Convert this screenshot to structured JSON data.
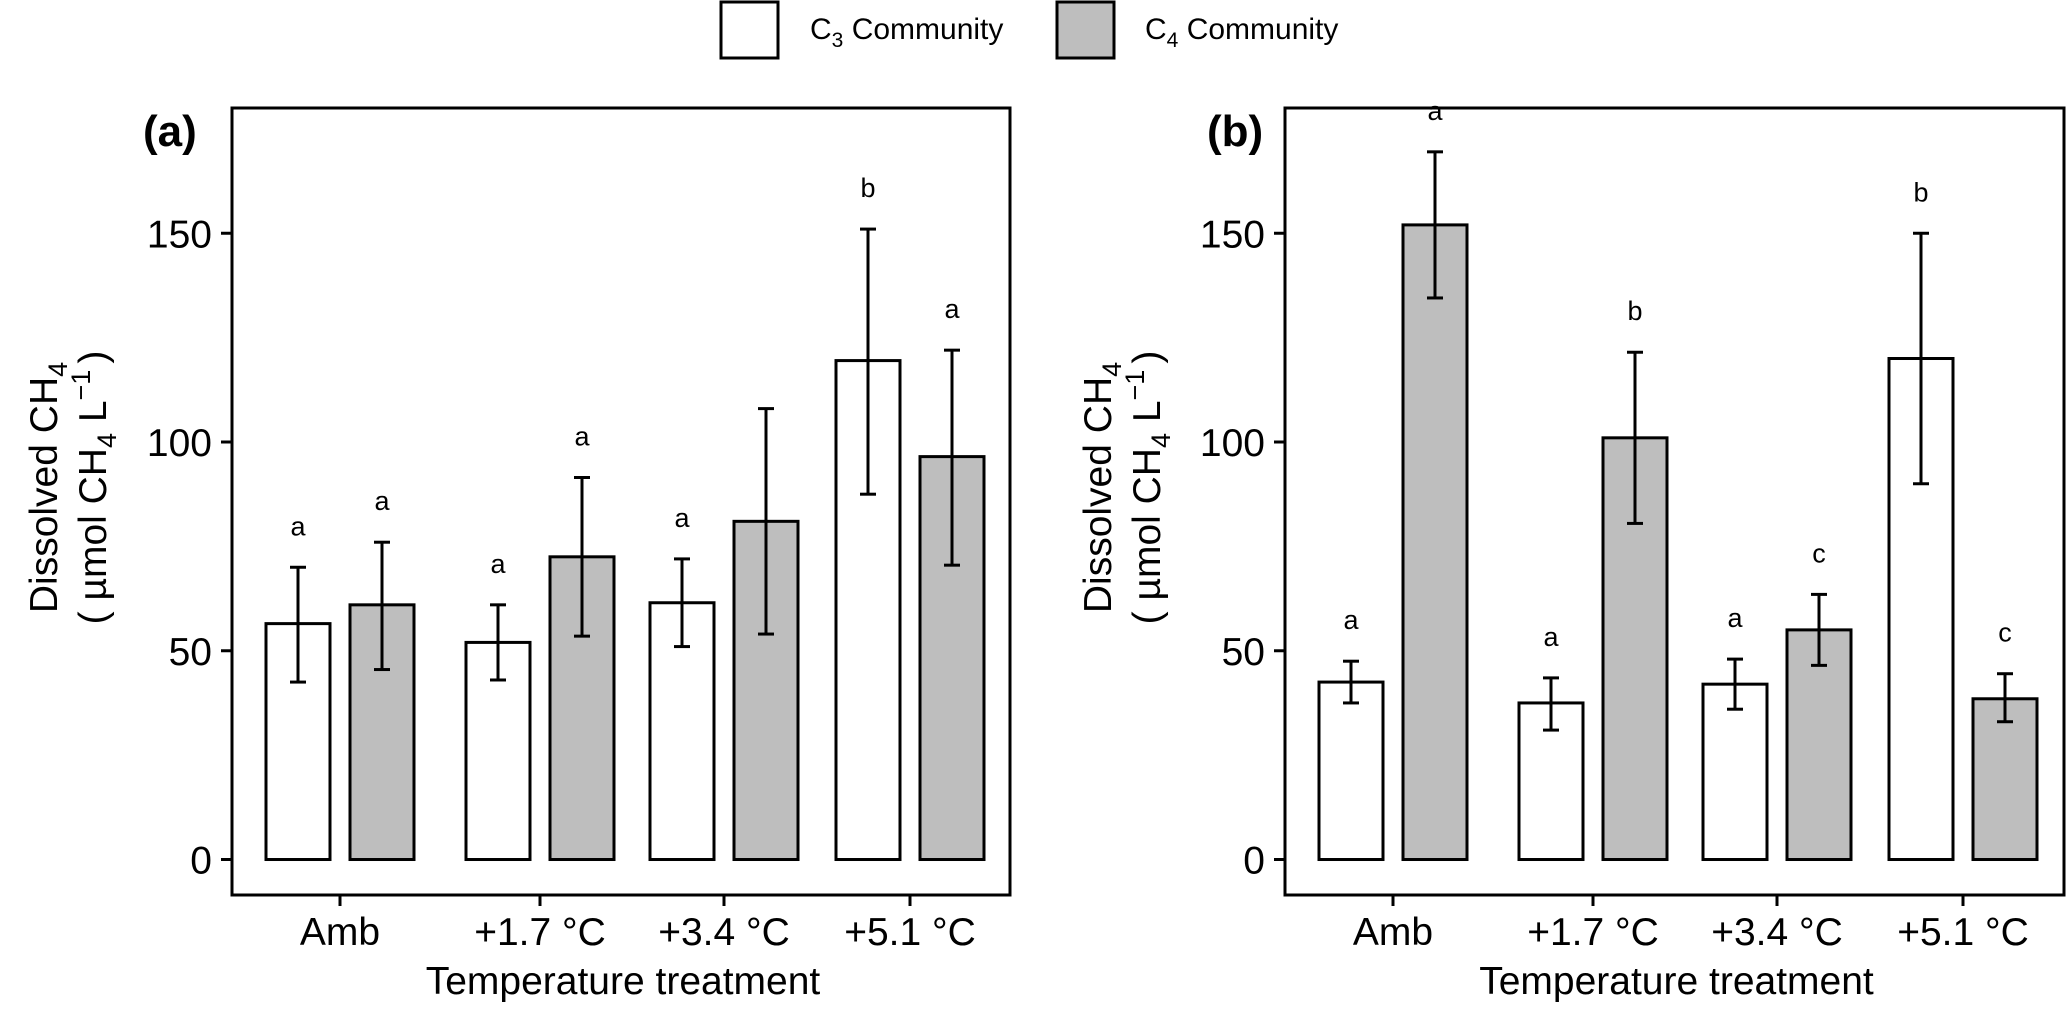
{
  "legend": {
    "position": "top-center",
    "entries": [
      {
        "prefix": "C",
        "sub": "3",
        "suffix": " Community",
        "fill": "#ffffff"
      },
      {
        "prefix": "C",
        "sub": "4",
        "suffix": " Community",
        "fill": "#bebebe"
      }
    ]
  },
  "colors": {
    "c3": "#ffffff",
    "c4": "#bebebe",
    "stroke": "#000000"
  },
  "chart_data": [
    {
      "type": "bar",
      "panel_label": "(a)",
      "xlabel": "Temperature treatment",
      "ylabel": {
        "line1": "Dissolved CH",
        "line1_sub": "4",
        "line2_pre": "( µmol CH",
        "line2_sub": "4",
        "line2_post": " L",
        "line2_sup": "−1",
        "line2_end": ")"
      },
      "ylim": [
        -8.5,
        180
      ],
      "yticks": [
        0,
        50,
        100,
        150
      ],
      "grid": false,
      "categories": [
        "Amb",
        "+1.7 °C",
        "+3.4 °C",
        "+5.1 °C"
      ],
      "series": [
        {
          "name": "C3 Community",
          "values": [
            56.5,
            52,
            61.5,
            119.5
          ],
          "err_low": [
            42.5,
            43,
            51,
            87.5
          ],
          "err_high": [
            70,
            61,
            72,
            151
          ],
          "letters": [
            "a",
            "a",
            "a",
            "b"
          ]
        },
        {
          "name": "C4 Community",
          "values": [
            61,
            72.5,
            81,
            96.5
          ],
          "err_low": [
            45.5,
            53.5,
            54,
            70.5
          ],
          "err_high": [
            76,
            91.5,
            108,
            122
          ],
          "letters": [
            "a",
            "a",
            "",
            "a"
          ]
        }
      ]
    },
    {
      "type": "bar",
      "panel_label": "(b)",
      "xlabel": "Temperature treatment",
      "ylabel": {
        "line1": "Dissolved CH",
        "line1_sub": "4",
        "line2_pre": "( µmol CH",
        "line2_sub": "4",
        "line2_post": " L",
        "line2_sup": "−1",
        "line2_end": ")"
      },
      "ylim": [
        -8.5,
        180
      ],
      "yticks": [
        0,
        50,
        100,
        150
      ],
      "grid": false,
      "categories": [
        "Amb",
        "+1.7 °C",
        "+3.4 °C",
        "+5.1 °C"
      ],
      "series": [
        {
          "name": "C3 Community",
          "values": [
            42.5,
            37.5,
            42,
            120
          ],
          "err_low": [
            37.5,
            31,
            36,
            90
          ],
          "err_high": [
            47.5,
            43.5,
            48,
            150
          ],
          "letters": [
            "a",
            "a",
            "a",
            "b"
          ]
        },
        {
          "name": "C4 Community",
          "values": [
            152,
            101,
            55,
            38.5
          ],
          "err_low": [
            134.5,
            80.5,
            46.5,
            33
          ],
          "err_high": [
            169.5,
            121.5,
            63.5,
            44.5
          ],
          "letters": [
            "a",
            "b",
            "c",
            "c"
          ]
        }
      ]
    }
  ]
}
